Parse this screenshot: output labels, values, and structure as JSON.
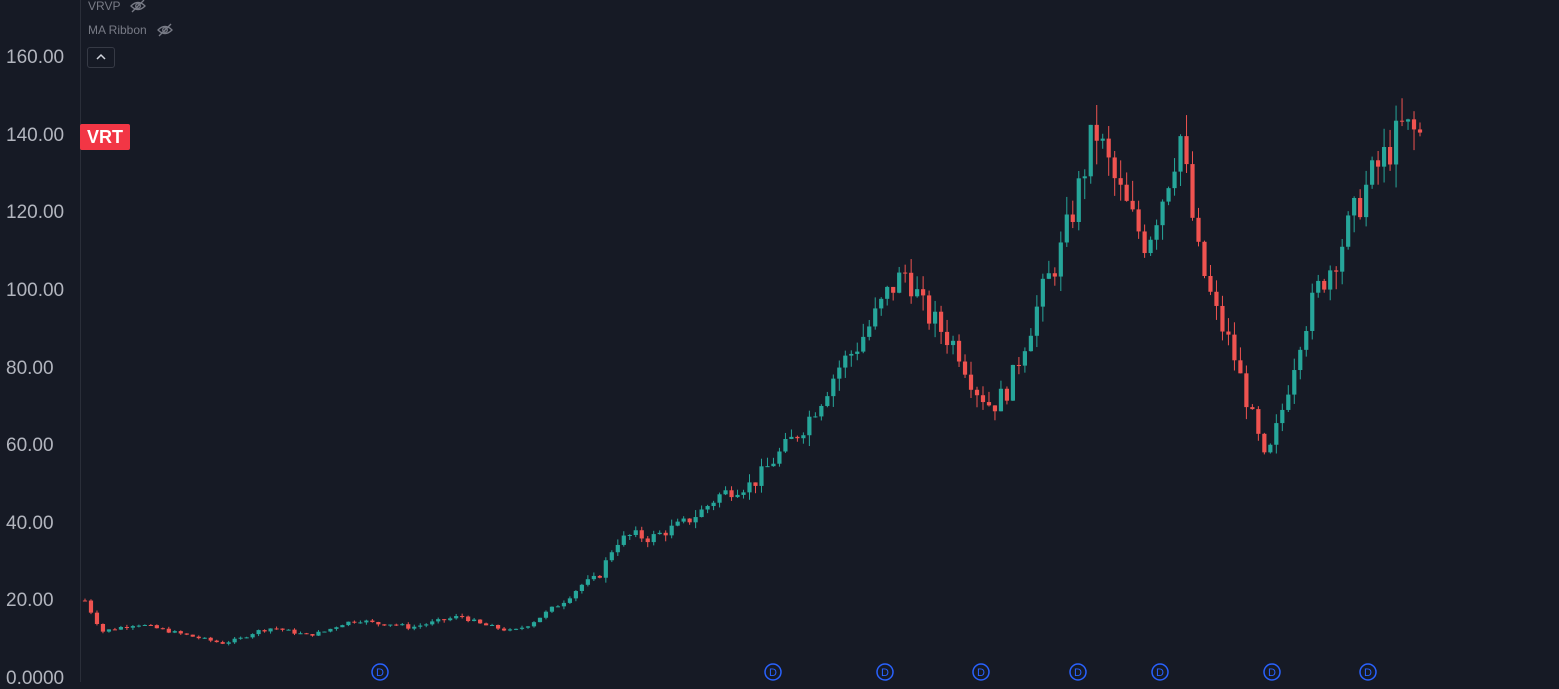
{
  "symbol": "VRT",
  "legend": [
    {
      "label": "VRVP",
      "icon": "eye-off-icon"
    },
    {
      "label": "MA Ribbon",
      "icon": "eye-off-icon"
    }
  ],
  "collapse_icon": "chevron-up-icon",
  "dividend_marker": "D",
  "colors": {
    "background": "#161a25",
    "up": "#26a69a",
    "down": "#ef5350",
    "marker": "#2962ff",
    "symbol_badge": "#f23645"
  },
  "chart_data": {
    "type": "candlestick",
    "ylim": [
      0,
      165
    ],
    "y_ticks": [
      "160.00",
      "140.00",
      "120.00",
      "100.00",
      "80.00",
      "60.00",
      "40.00",
      "20.00",
      "0.0000"
    ],
    "dividend_markers_count": 8,
    "series_close_approx": [
      20,
      12,
      13,
      14,
      13,
      12,
      11,
      10,
      9,
      10,
      12,
      13,
      12,
      11,
      12,
      14,
      15,
      14,
      14,
      13,
      14,
      15,
      16,
      14,
      13,
      12,
      14,
      17,
      20,
      24,
      26,
      35,
      37,
      36,
      38,
      40,
      43,
      47,
      49,
      50,
      55,
      60,
      65,
      72,
      80,
      85,
      92,
      100,
      105,
      95,
      90,
      85,
      75,
      70,
      75,
      88,
      100,
      110,
      125,
      142,
      130,
      120,
      112,
      125,
      140,
      110,
      95,
      85,
      70,
      55,
      70,
      88,
      100,
      108,
      118,
      128,
      135,
      142,
      140
    ]
  }
}
